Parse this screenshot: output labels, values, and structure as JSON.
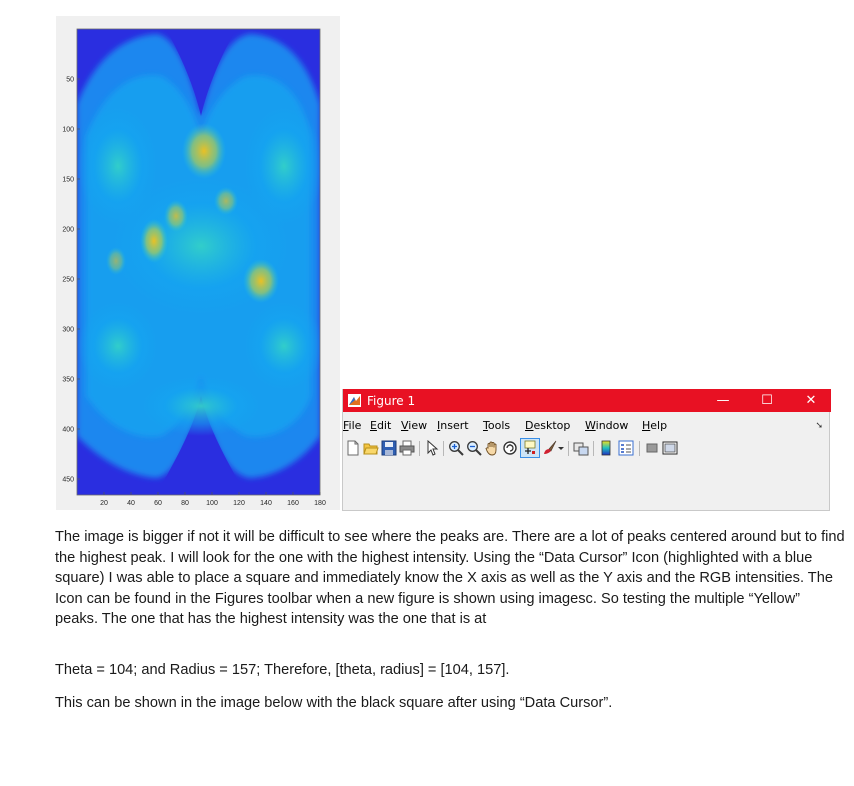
{
  "plot": {
    "y_ticks": [
      "50",
      "100",
      "150",
      "200",
      "250",
      "300",
      "350",
      "400",
      "450"
    ],
    "x_ticks": [
      "20",
      "40",
      "60",
      "80",
      "100",
      "120",
      "140",
      "160",
      "180"
    ],
    "colors": {
      "background": "#2a2ee0",
      "mid": "#14a6f0",
      "cyan": "#33d0c8",
      "peak": "#f5c21a",
      "panel": "#f0f0f0"
    }
  },
  "figure_window": {
    "title": "Figure 1",
    "controls": {
      "minimize": "—",
      "maximize": "☐",
      "close": "✕"
    },
    "titlebar_color": "#e81123",
    "menus": [
      {
        "mnemonic": "F",
        "rest": "ile"
      },
      {
        "mnemonic": "E",
        "rest": "dit"
      },
      {
        "mnemonic": "V",
        "rest": "iew"
      },
      {
        "mnemonic": "I",
        "rest": "nsert"
      },
      {
        "mnemonic": "T",
        "rest": "ools"
      },
      {
        "mnemonic": "D",
        "rest": "esktop"
      },
      {
        "mnemonic": "W",
        "rest": "indow"
      },
      {
        "mnemonic": "H",
        "rest": "elp"
      }
    ],
    "dock_arrow": "➘",
    "toolbar_icons": [
      "new-figure-icon",
      "open-file-icon",
      "save-icon",
      "print-icon",
      "edit-plot-arrow-icon",
      "zoom-in-icon",
      "zoom-out-icon",
      "pan-hand-icon",
      "rotate-3d-icon",
      "data-cursor-icon",
      "brush-icon",
      "dropdown-icon",
      "link-plot-icon",
      "colorbar-icon",
      "legend-icon",
      "hide-plot-tools-icon",
      "show-plot-tools-icon"
    ]
  },
  "text": {
    "paragraph_1": "The image is bigger if not it will be difficult to see where the peaks are. There are a lot of peaks centered around but to find the highest peak. I will look for the one with the highest intensity. Using the “Data Cursor” Icon (highlighted with a blue square) I was able to place a square and immediately know the X axis as well as the Y axis and the RGB intensities. The Icon can be found in the Figures toolbar when a new figure is shown using imagesc. So testing the multiple “Yellow” peaks. The one that has the highest intensity was the one that is at",
    "paragraph_2": "Theta = 104; and Radius = 157; Therefore, [theta, radius] = [104, 157].",
    "paragraph_3": "This can be shown in the image below with the black square after using “Data Cursor”."
  }
}
